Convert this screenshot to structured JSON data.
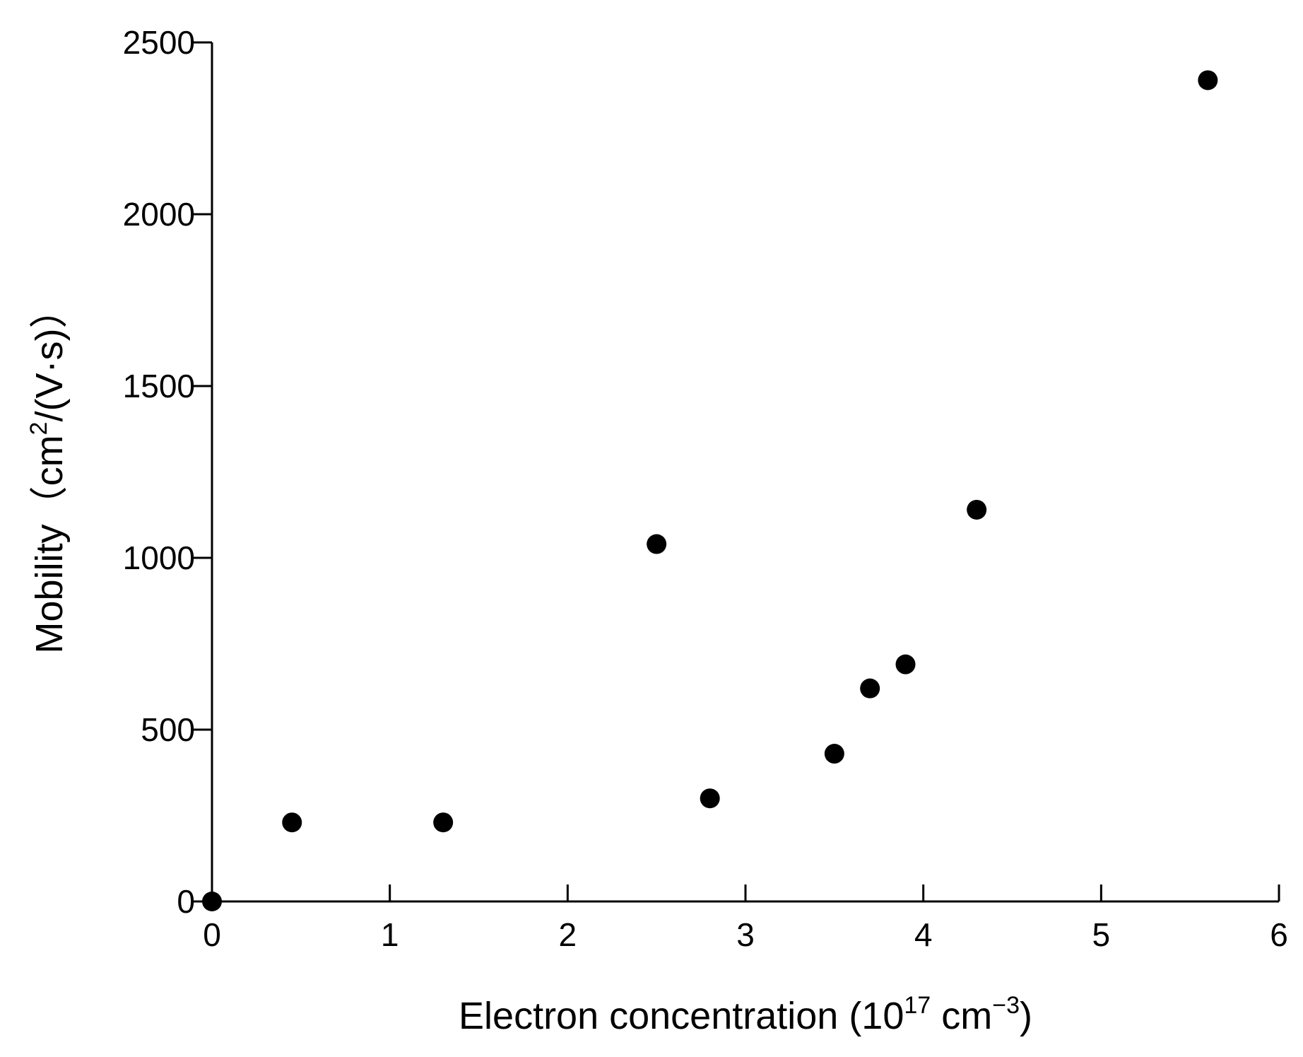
{
  "chart_data": {
    "type": "scatter",
    "title": "",
    "xlabel": {
      "prefix": "Electron concentration (10",
      "sup1": "17",
      "mid": " cm",
      "sup2": "−3",
      "suffix": ")"
    },
    "ylabel": {
      "prefix": "Mobility（cm",
      "sup": "2",
      "suffix": "/(V·s)）"
    },
    "xlim": [
      0,
      6
    ],
    "ylim": [
      0,
      2500
    ],
    "xticks": [
      0,
      1,
      2,
      3,
      4,
      5,
      6
    ],
    "yticks": [
      0,
      500,
      1000,
      1500,
      2000,
      2500
    ],
    "grid": false,
    "marker_color": "#000000",
    "points": [
      {
        "x": 0.0,
        "y": 0
      },
      {
        "x": 0.45,
        "y": 230
      },
      {
        "x": 1.3,
        "y": 230
      },
      {
        "x": 2.5,
        "y": 1040
      },
      {
        "x": 2.8,
        "y": 300
      },
      {
        "x": 3.5,
        "y": 430
      },
      {
        "x": 3.7,
        "y": 620
      },
      {
        "x": 3.9,
        "y": 690
      },
      {
        "x": 4.3,
        "y": 1140
      },
      {
        "x": 5.6,
        "y": 2390
      }
    ]
  }
}
